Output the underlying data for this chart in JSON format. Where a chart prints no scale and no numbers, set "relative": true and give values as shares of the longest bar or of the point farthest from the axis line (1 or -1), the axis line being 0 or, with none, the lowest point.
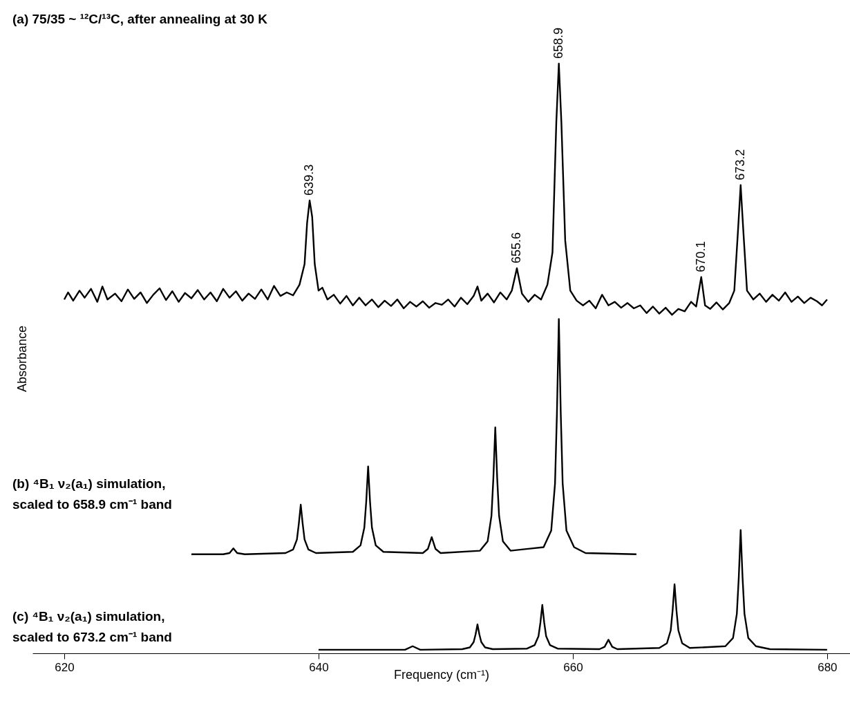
{
  "chart_data": {
    "type": "line",
    "relative": true,
    "xlabel": "Frequency (cm⁻¹)",
    "ylabel": "Absorbance",
    "xlim": [
      617.5,
      681.8
    ],
    "xticks": [
      620,
      640,
      660,
      680
    ],
    "tick_labels": "x",
    "line_style": "solid",
    "series": [
      {
        "color": "#000000",
        "x": [
          620,
          620.3,
          620.7,
          621.2,
          621.6,
          622.1,
          622.6,
          623,
          623.4,
          624,
          624.5,
          625,
          625.5,
          626,
          626.5,
          627,
          627.5,
          628,
          628.5,
          629,
          629.5,
          630,
          630.5,
          631,
          631.5,
          632,
          632.5,
          633,
          633.5,
          634,
          634.5,
          635,
          635.5,
          636,
          636.5,
          637,
          637.5,
          638,
          638.5,
          638.9,
          639.1,
          639.3,
          639.5,
          639.7,
          640,
          640.3,
          640.7,
          641.2,
          641.7,
          642.2,
          642.7,
          643.2,
          643.7,
          644.2,
          644.7,
          645.2,
          645.7,
          646.2,
          646.7,
          647.2,
          647.7,
          648.2,
          648.7,
          649.2,
          649.7,
          650.2,
          650.7,
          651.2,
          651.7,
          652.2,
          652.5,
          652.8,
          653.3,
          653.8,
          654.3,
          654.8,
          655.2,
          655.6,
          656,
          656.5,
          657,
          657.5,
          658,
          658.4,
          658.7,
          658.9,
          659.1,
          659.4,
          659.8,
          660.3,
          660.8,
          661.3,
          661.8,
          662.3,
          662.8,
          663.3,
          663.8,
          664.3,
          664.8,
          665.3,
          665.8,
          666.3,
          666.8,
          667.3,
          667.8,
          668.3,
          668.8,
          669.3,
          669.7,
          670.1,
          670.4,
          670.8,
          671.3,
          671.8,
          672.3,
          672.7,
          673,
          673.2,
          673.4,
          673.7,
          674.2,
          674.7,
          675.2,
          675.7,
          676.2,
          676.7,
          677.2,
          677.7,
          678.2,
          678.7,
          679.2,
          679.6,
          680
        ],
        "values": [
          0.6,
          0.612,
          0.598,
          0.615,
          0.603,
          0.618,
          0.596,
          0.622,
          0.6,
          0.61,
          0.597,
          0.617,
          0.601,
          0.612,
          0.594,
          0.608,
          0.619,
          0.599,
          0.614,
          0.596,
          0.611,
          0.602,
          0.616,
          0.6,
          0.612,
          0.597,
          0.618,
          0.603,
          0.614,
          0.598,
          0.61,
          0.601,
          0.617,
          0.6,
          0.623,
          0.606,
          0.612,
          0.607,
          0.625,
          0.66,
          0.73,
          0.768,
          0.74,
          0.66,
          0.615,
          0.62,
          0.6,
          0.608,
          0.593,
          0.606,
          0.59,
          0.603,
          0.59,
          0.6,
          0.587,
          0.598,
          0.589,
          0.6,
          0.585,
          0.596,
          0.588,
          0.597,
          0.586,
          0.594,
          0.591,
          0.6,
          0.588,
          0.603,
          0.592,
          0.606,
          0.622,
          0.598,
          0.61,
          0.595,
          0.612,
          0.6,
          0.615,
          0.653,
          0.61,
          0.596,
          0.608,
          0.6,
          0.625,
          0.68,
          0.9,
          1.0,
          0.9,
          0.7,
          0.615,
          0.598,
          0.59,
          0.598,
          0.585,
          0.608,
          0.59,
          0.596,
          0.586,
          0.594,
          0.585,
          0.59,
          0.577,
          0.588,
          0.576,
          0.586,
          0.574,
          0.584,
          0.58,
          0.596,
          0.588,
          0.638,
          0.59,
          0.584,
          0.595,
          0.583,
          0.594,
          0.615,
          0.72,
          0.794,
          0.72,
          0.615,
          0.6,
          0.61,
          0.596,
          0.608,
          0.598,
          0.612,
          0.596,
          0.605,
          0.594,
          0.603,
          0.597,
          0.59,
          0.6
        ]
      },
      {
        "color": "#000000",
        "x": [
          630,
          632.5,
          633.0,
          633.3,
          633.6,
          634.2,
          637.4,
          638.0,
          638.3,
          638.45,
          638.6,
          638.75,
          638.9,
          639.2,
          639.8,
          642.7,
          643.3,
          643.6,
          643.75,
          643.9,
          644.05,
          644.2,
          644.5,
          645.1,
          648.2,
          648.6,
          648.9,
          649.2,
          649.6,
          652.7,
          653.3,
          653.6,
          653.75,
          653.9,
          654.05,
          654.2,
          654.5,
          655.1,
          657.7,
          658.3,
          658.6,
          658.75,
          658.9,
          659.05,
          659.2,
          659.5,
          660.1,
          661,
          665
        ],
        "values": [
          0.168,
          0.168,
          0.17,
          0.178,
          0.17,
          0.168,
          0.17,
          0.176,
          0.193,
          0.22,
          0.252,
          0.22,
          0.193,
          0.176,
          0.17,
          0.172,
          0.183,
          0.213,
          0.257,
          0.317,
          0.257,
          0.213,
          0.183,
          0.172,
          0.17,
          0.177,
          0.197,
          0.177,
          0.17,
          0.174,
          0.19,
          0.233,
          0.297,
          0.383,
          0.297,
          0.233,
          0.19,
          0.174,
          0.18,
          0.208,
          0.288,
          0.407,
          0.567,
          0.407,
          0.288,
          0.208,
          0.18,
          0.17,
          0.168
        ]
      },
      {
        "color": "#000000",
        "x": [
          640,
          646.8,
          647.4,
          648,
          651.3,
          651.9,
          652.2,
          652.35,
          652.5,
          652.65,
          652.8,
          653.1,
          653.7,
          656.4,
          657.0,
          657.3,
          657.45,
          657.6,
          657.75,
          657.9,
          658.2,
          658.8,
          662.1,
          662.5,
          662.8,
          663.1,
          663.5,
          666.8,
          667.4,
          667.7,
          667.85,
          668.0,
          668.15,
          668.3,
          668.6,
          669.2,
          672.0,
          672.6,
          672.9,
          673.05,
          673.2,
          673.35,
          673.5,
          673.8,
          674.4,
          675.5,
          680
        ],
        "values": [
          0.006,
          0.006,
          0.012,
          0.006,
          0.007,
          0.01,
          0.019,
          0.032,
          0.049,
          0.032,
          0.019,
          0.01,
          0.007,
          0.008,
          0.014,
          0.029,
          0.052,
          0.082,
          0.052,
          0.029,
          0.014,
          0.008,
          0.007,
          0.011,
          0.023,
          0.011,
          0.007,
          0.009,
          0.017,
          0.039,
          0.073,
          0.117,
          0.073,
          0.039,
          0.017,
          0.009,
          0.012,
          0.026,
          0.067,
          0.128,
          0.209,
          0.128,
          0.067,
          0.026,
          0.012,
          0.007,
          0.006
        ]
      }
    ],
    "annotations": [
      "(a) 75/35 ~ ¹²C/¹³C, after annealing at 30 K",
      "(b) ⁴B₁ ν₂(a₁) simulation,\nscaled to 658.9 cm⁻¹ band",
      "(c) ⁴B₁ ν₂(a₁) simulation,\nscaled to 673.2 cm⁻¹ band",
      {
        "text": "639.3",
        "x": 639.3,
        "y": 0.768
      },
      {
        "text": "655.6",
        "x": 655.6,
        "y": 0.653
      },
      {
        "text": "658.9",
        "x": 658.9,
        "y": 1.0
      },
      {
        "text": "670.1",
        "x": 670.1,
        "y": 0.638
      },
      {
        "text": "673.2",
        "x": 673.2,
        "y": 0.794
      }
    ]
  }
}
